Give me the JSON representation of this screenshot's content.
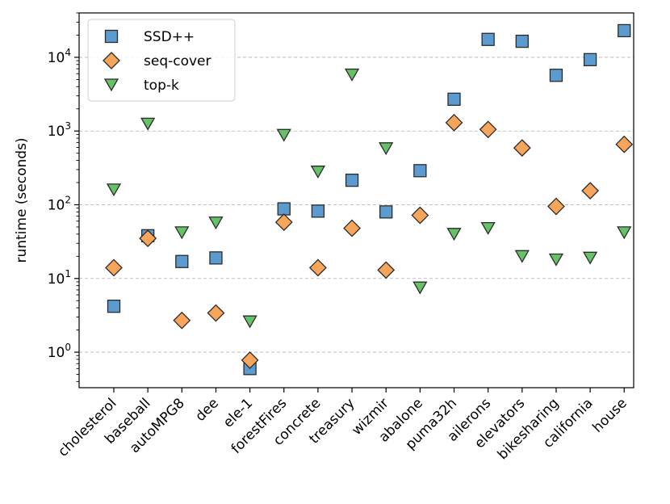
{
  "chart_data": {
    "type": "scatter",
    "title": "",
    "xlabel": "",
    "ylabel": "runtime (seconds)",
    "yscale": "log",
    "ylim": [
      0.33,
      40000
    ],
    "grid": "y-major-dashed",
    "legend_position": "top-left",
    "categories": [
      "cholesterol",
      "baseball",
      "autoMPG8",
      "dee",
      "ele-1",
      "forestFires",
      "concrete",
      "treasury",
      "wizmir",
      "abalone",
      "puma32h",
      "ailerons",
      "elevators",
      "bikesharing",
      "california",
      "house"
    ],
    "y_ticks": [
      {
        "value": 1,
        "base": "10",
        "exp": "0"
      },
      {
        "value": 10,
        "base": "10",
        "exp": "1"
      },
      {
        "value": 100,
        "base": "10",
        "exp": "2"
      },
      {
        "value": 1000,
        "base": "10",
        "exp": "3"
      },
      {
        "value": 10000,
        "base": "10",
        "exp": "4"
      }
    ],
    "series": [
      {
        "name": "SSD++",
        "marker": "square",
        "color": "#5b9bd0",
        "values": [
          4.2,
          38,
          17,
          19,
          0.6,
          88,
          82,
          215,
          80,
          290,
          2700,
          17500,
          16500,
          5700,
          9300,
          23000
        ]
      },
      {
        "name": "seq-cover",
        "marker": "diamond",
        "color": "#f8a55c",
        "values": [
          14,
          35,
          2.7,
          3.4,
          0.78,
          58,
          14,
          48,
          13,
          72,
          1300,
          1050,
          590,
          95,
          155,
          660
        ]
      },
      {
        "name": "top-k",
        "marker": "triangle-down",
        "color": "#66c266",
        "values": [
          160,
          1250,
          42,
          57,
          2.6,
          880,
          280,
          5800,
          580,
          7.5,
          40,
          48,
          20,
          18,
          19,
          42
        ]
      }
    ]
  }
}
